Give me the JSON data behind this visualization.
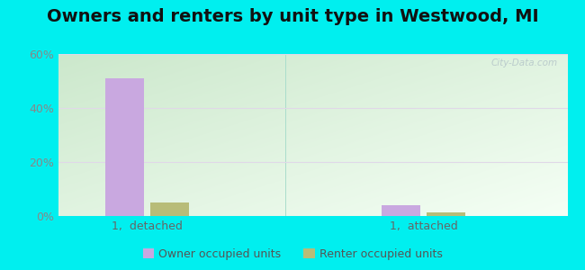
{
  "title": "Owners and renters by unit type in Westwood, MI",
  "categories": [
    "1,  detached",
    "1,  attached"
  ],
  "owner_values": [
    51,
    4
  ],
  "renter_values": [
    5,
    1.5
  ],
  "owner_color": "#c9a8e0",
  "renter_color": "#b8bc78",
  "ylim": [
    0,
    60
  ],
  "yticks": [
    0,
    20,
    40,
    60
  ],
  "ytick_labels": [
    "0%",
    "20%",
    "40%",
    "60%"
  ],
  "outer_bg": "#00efef",
  "watermark": "City-Data.com",
  "legend_owner": "Owner occupied units",
  "legend_renter": "Renter occupied units",
  "bar_width": 0.35,
  "group_positions": [
    1.0,
    3.5
  ],
  "title_fontsize": 14,
  "axis_label_fontsize": 9,
  "legend_fontsize": 9
}
